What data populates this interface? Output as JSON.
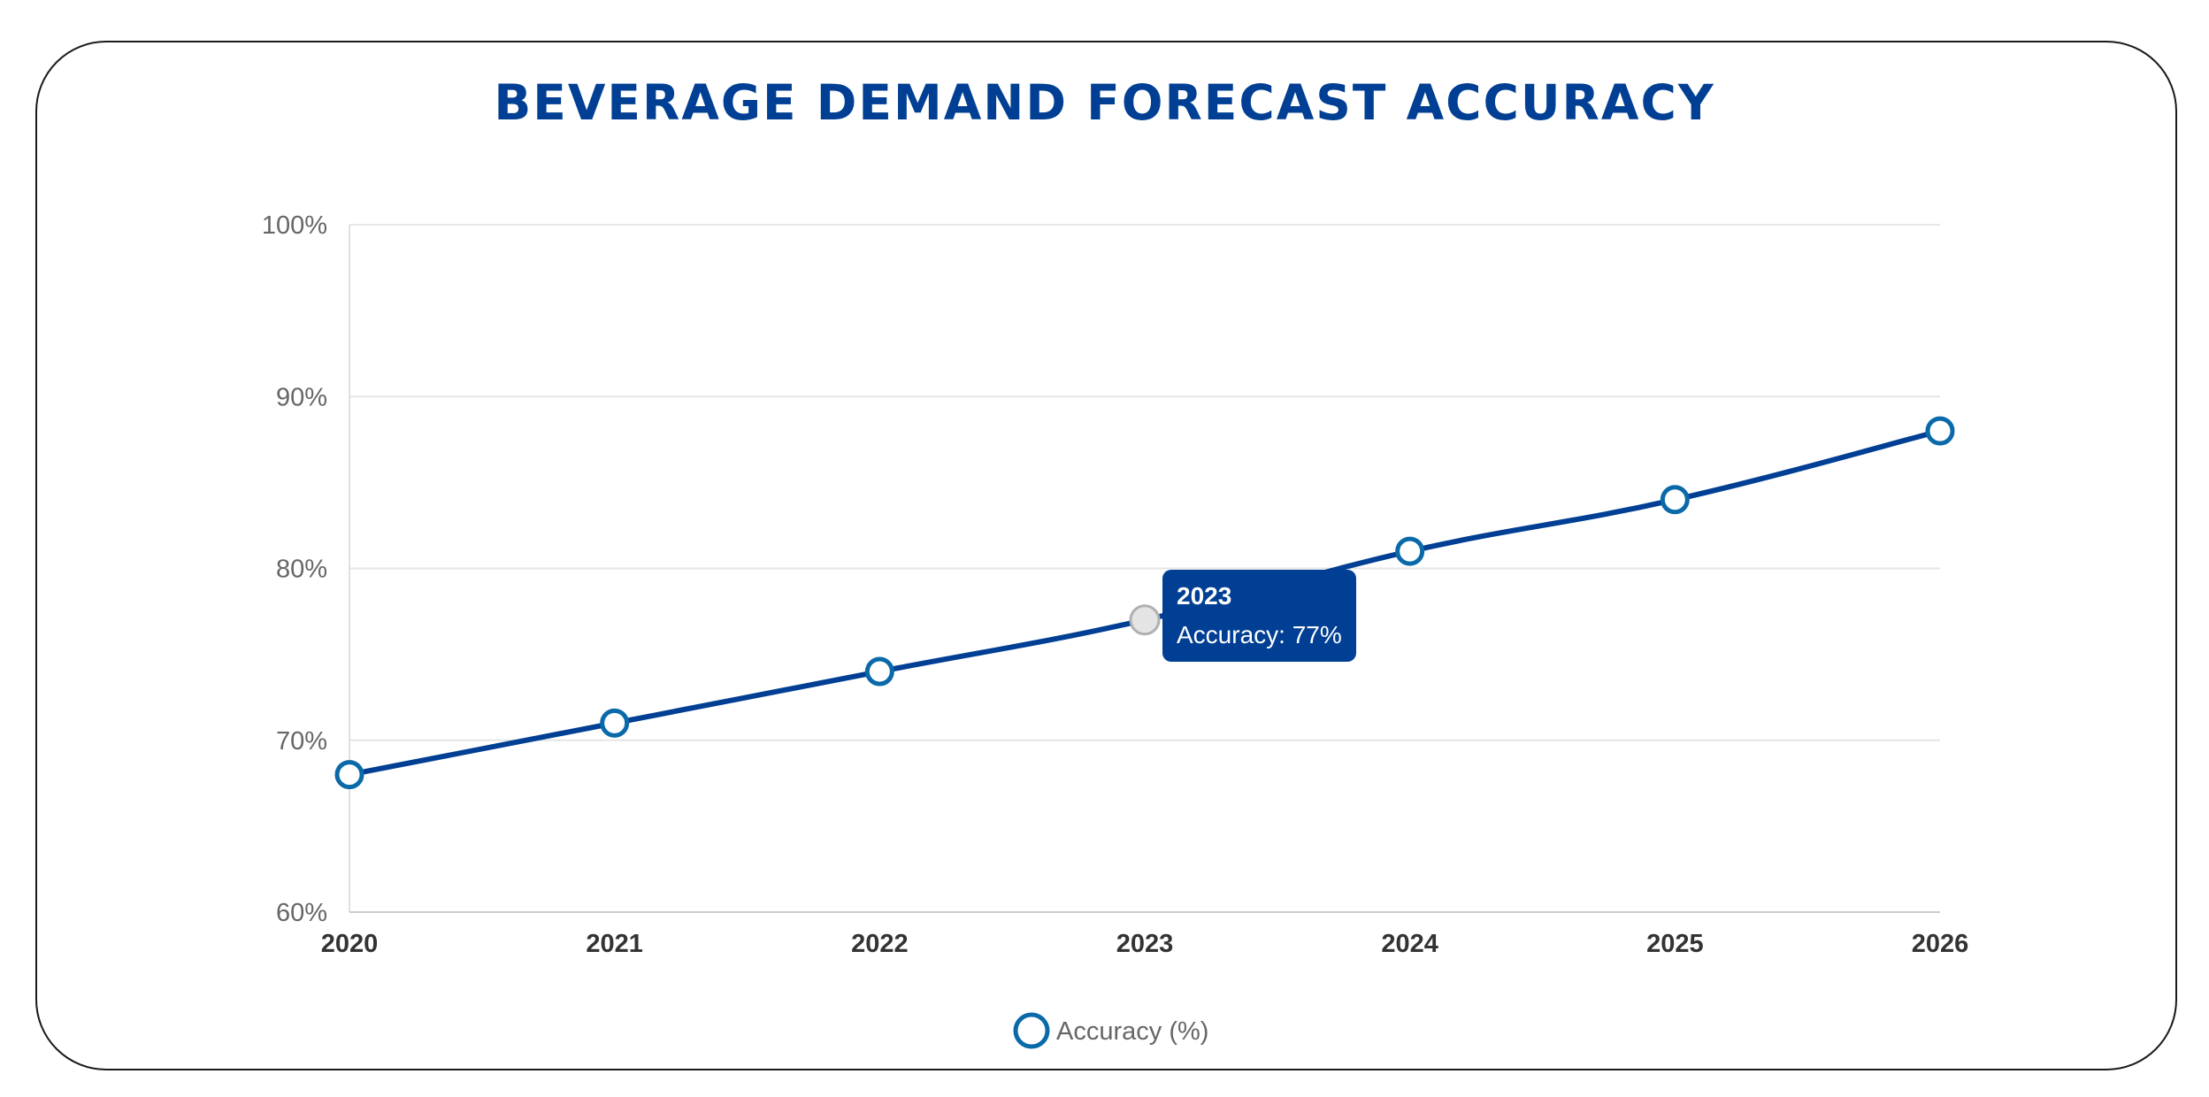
{
  "chart_data": {
    "type": "line",
    "title": "BEVERAGE DEMAND FORECAST ACCURACY",
    "categories": [
      "2020",
      "2021",
      "2022",
      "2023",
      "2024",
      "2025",
      "2026"
    ],
    "series": [
      {
        "name": "Accuracy (%)",
        "values": [
          68,
          71,
          74,
          77,
          81,
          84,
          88
        ]
      }
    ],
    "ylim": [
      60,
      100
    ],
    "yticks": [
      60,
      70,
      80,
      90,
      100
    ],
    "ytick_labels": [
      "60%",
      "70%",
      "80%",
      "90%",
      "100%"
    ],
    "grid": true,
    "legend": "bottom",
    "tooltip": {
      "category": "2023",
      "label": "Accuracy: 77%"
    },
    "colors": {
      "line": "#003f93",
      "marker_border": "#0a6aa9",
      "tooltip_bg": "#003f93",
      "title": "#003f93"
    }
  }
}
